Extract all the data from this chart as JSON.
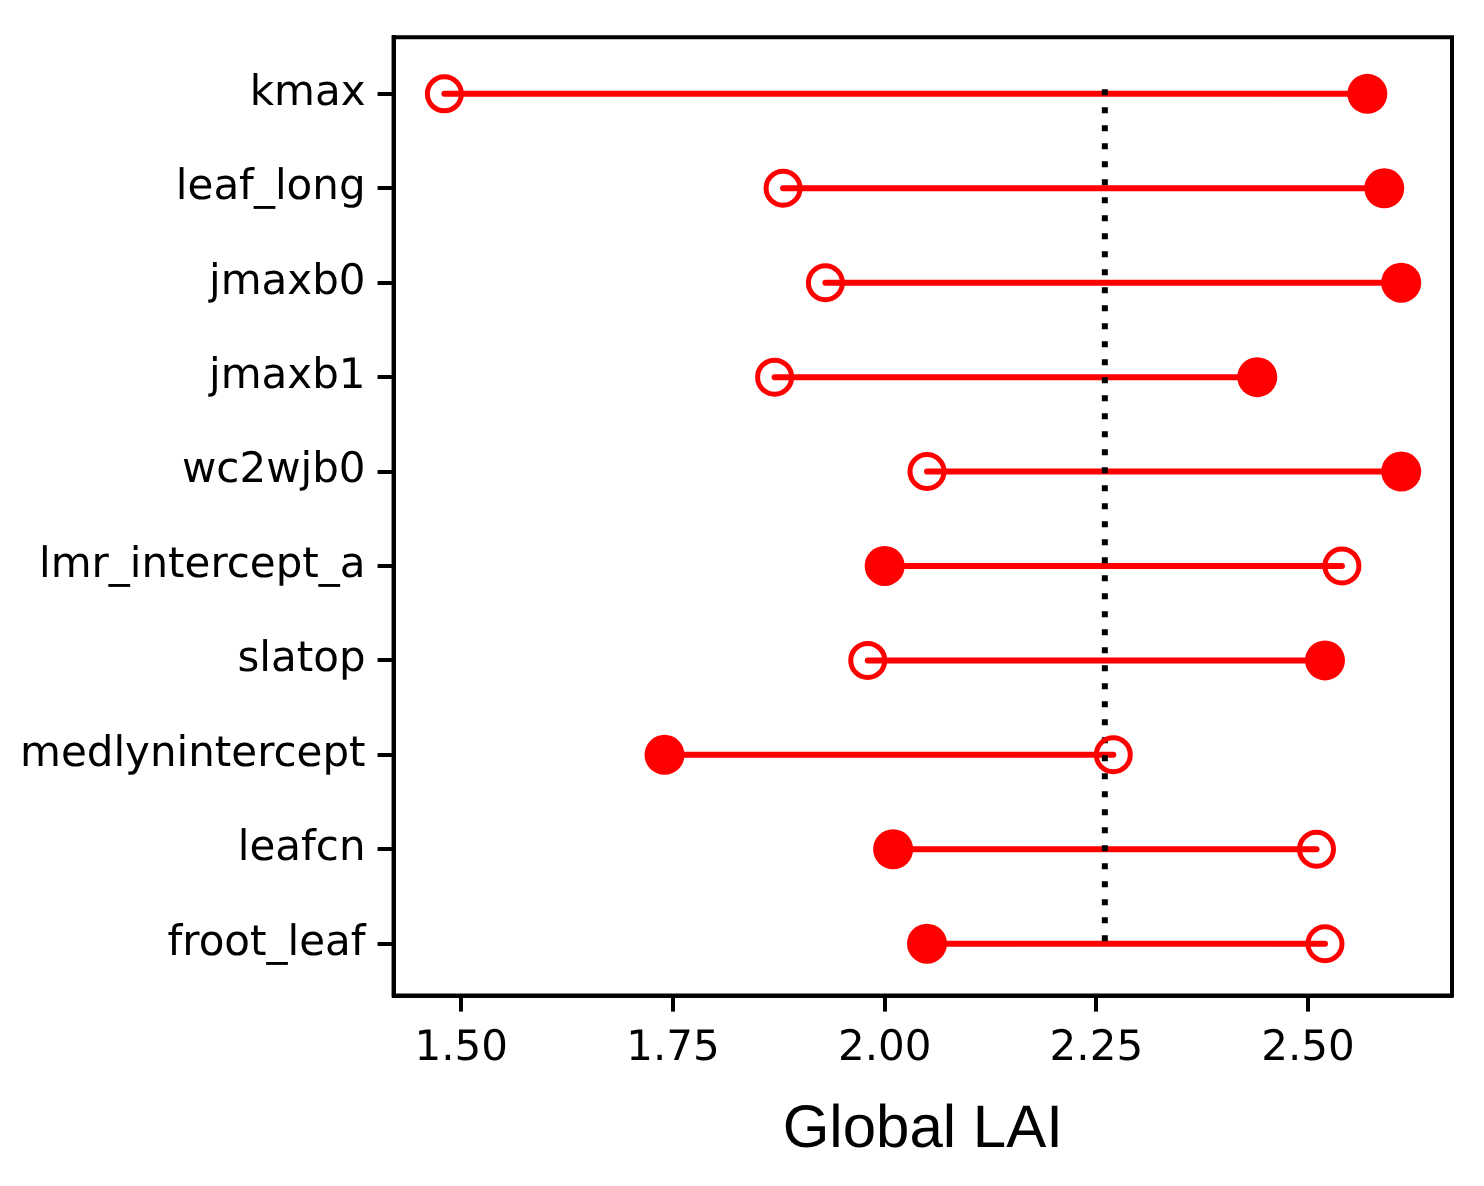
{
  "chart_data": {
    "type": "scatter",
    "orientation": "horizontal",
    "xlabel": "Global LAI",
    "categories": [
      "kmax",
      "leaf_long",
      "jmaxb0",
      "jmaxb1",
      "wc2wjb0",
      "lmr_intercept_a",
      "slatop",
      "medlynintercept",
      "leafcn",
      "froot_leaf"
    ],
    "series": [
      {
        "color": "#ff0000",
        "values": [
          1.48,
          1.88,
          1.93,
          1.87,
          2.05,
          2.54,
          1.98,
          2.27,
          2.51,
          2.52
        ]
      },
      {
        "color": "#ff0000",
        "values": [
          2.57,
          2.59,
          2.61,
          2.44,
          2.61,
          2.0,
          2.52,
          1.74,
          2.01,
          2.05
        ]
      }
    ],
    "xlim": [
      1.42,
      2.67
    ],
    "xticks": [
      {
        "value": 1.5,
        "label": "1.50"
      },
      {
        "value": 1.75,
        "label": "1.75"
      },
      {
        "value": 2.0,
        "label": "2.00"
      },
      {
        "value": 2.25,
        "label": "2.25"
      },
      {
        "value": 2.5,
        "label": "2.50"
      }
    ],
    "ref_lines": [
      {
        "axis": "x",
        "value": 2.26,
        "color": "#000000",
        "line_style": "dotted"
      }
    ],
    "marker": "circle",
    "grid": false,
    "legend": false
  }
}
